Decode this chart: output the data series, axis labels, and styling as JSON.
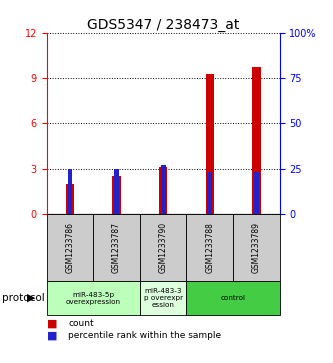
{
  "title": "GDS5347 / 238473_at",
  "samples": [
    "GSM1233786",
    "GSM1233787",
    "GSM1233790",
    "GSM1233788",
    "GSM1233789"
  ],
  "count_values": [
    2.0,
    2.5,
    3.1,
    9.3,
    9.7
  ],
  "percentile_values_pct": [
    25,
    25,
    27,
    23,
    23
  ],
  "ylim_left": [
    0,
    12
  ],
  "ylim_right": [
    0,
    100
  ],
  "yticks_left": [
    0,
    3,
    6,
    9,
    12
  ],
  "yticks_right": [
    0,
    25,
    50,
    75,
    100
  ],
  "yticklabels_right": [
    "0",
    "25",
    "50",
    "75",
    "100%"
  ],
  "red_bar_width": 0.18,
  "blue_bar_width": 0.1,
  "bar_color_count": "#cc0000",
  "bar_color_percentile": "#2222cc",
  "background_color": "#ffffff",
  "protocols": [
    {
      "label": "miR-483-5p\noverexpression",
      "n_samples": 2,
      "color": "#bbffbb"
    },
    {
      "label": "miR-483-3\np overexpr\nession",
      "n_samples": 1,
      "color": "#ddffdd"
    },
    {
      "label": "control",
      "n_samples": 2,
      "color": "#44cc44"
    }
  ],
  "protocol_label": "protocol",
  "legend_count_label": "count",
  "legend_percentile_label": "percentile rank within the sample",
  "tick_fontsize": 7,
  "sample_fontsize": 5.5,
  "title_fontsize": 10
}
